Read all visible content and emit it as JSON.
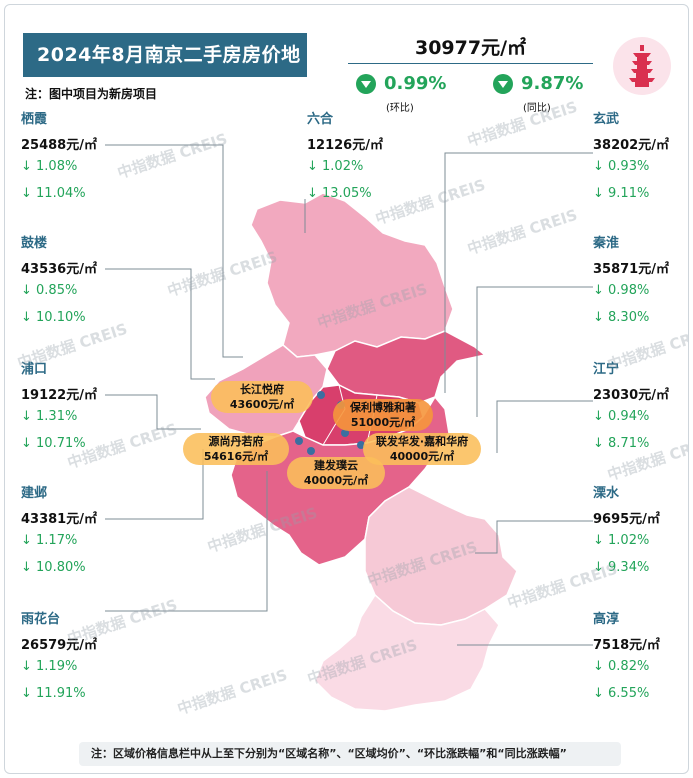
{
  "title": "2024年8月南京二手房房价地图",
  "note_top": "注：图中项目为新房项目",
  "average": {
    "price": "30977元/㎡",
    "mom": "0.99%",
    "mom_label": "(环比)",
    "yoy": "9.87%",
    "yoy_label": "(同比)"
  },
  "districts": [
    {
      "id": "qixia",
      "name": "栖霞",
      "price": "25488元/㎡",
      "mom": "↓ 1.08%",
      "yoy": "↓ 11.04%"
    },
    {
      "id": "luhe",
      "name": "六合",
      "price": "12126元/㎡",
      "mom": "↓ 1.02%",
      "yoy": "↓ 13.05%"
    },
    {
      "id": "xuanwu",
      "name": "玄武",
      "price": "38202元/㎡",
      "mom": "↓ 0.93%",
      "yoy": "↓ 9.11%"
    },
    {
      "id": "gulou",
      "name": "鼓楼",
      "price": "43536元/㎡",
      "mom": "↓ 0.85%",
      "yoy": "↓ 10.10%"
    },
    {
      "id": "qinhuai",
      "name": "秦淮",
      "price": "35871元/㎡",
      "mom": "↓ 0.98%",
      "yoy": "↓ 8.30%"
    },
    {
      "id": "pukou",
      "name": "浦口",
      "price": "19122元/㎡",
      "mom": "↓ 1.31%",
      "yoy": "↓ 10.71%"
    },
    {
      "id": "jiangning",
      "name": "江宁",
      "price": "23030元/㎡",
      "mom": "↓ 0.94%",
      "yoy": "↓ 8.71%"
    },
    {
      "id": "jianye",
      "name": "建邺",
      "price": "43381元/㎡",
      "mom": "↓ 1.17%",
      "yoy": "↓ 10.80%"
    },
    {
      "id": "lishui",
      "name": "溧水",
      "price": "9695元/㎡",
      "mom": "↓ 1.02%",
      "yoy": "↓ 9.34%"
    },
    {
      "id": "yuhuatai",
      "name": "雨花台",
      "price": "26579元/㎡",
      "mom": "↓ 1.19%",
      "yoy": "↓ 11.91%"
    },
    {
      "id": "gaochun",
      "name": "高淳",
      "price": "7518元/㎡",
      "mom": "↓ 0.82%",
      "yoy": "↓ 6.55%"
    }
  ],
  "projects": [
    {
      "name": "长江悦府",
      "price": "43600元/㎡"
    },
    {
      "name": "保利博雅和著",
      "price": "51000元/㎡"
    },
    {
      "name": "源尚丹若府",
      "price": "54616元/㎡"
    },
    {
      "name": "联发华发·嘉和华府",
      "price": "40000元/㎡"
    },
    {
      "name": "建发璞云",
      "price": "40000元/㎡"
    }
  ],
  "watermark": "中指数据 CREIS",
  "bottom_note": "注：区域价格信息栏中从上至下分别为“区域名称”、“区域均价”、“环比涨跌幅”和“同比涨跌幅”",
  "colors": {
    "banner": "#2d6a86",
    "down_green": "#23a45a",
    "map_dark": "#e0507a",
    "map_mid": "#ef8fac",
    "map_light": "#f6c4d3",
    "map_pale": "#fadbe5"
  }
}
